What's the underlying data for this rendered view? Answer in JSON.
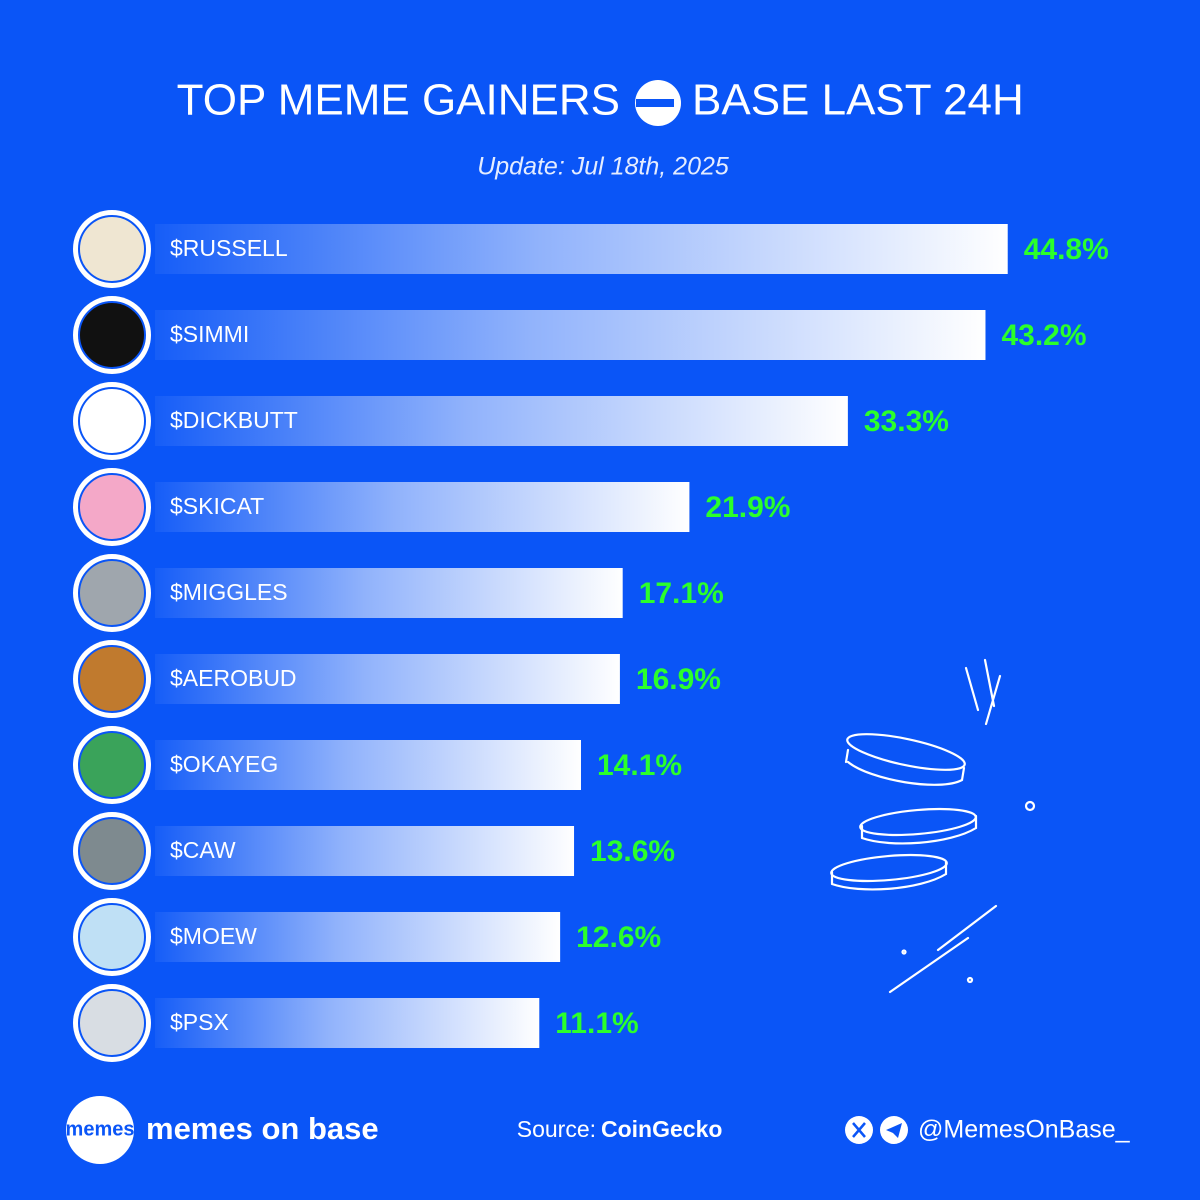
{
  "chart_data": {
    "type": "hbar",
    "title": "TOP MEME GAINERS",
    "title_network": "BASE LAST 24H",
    "subtitle": "Update: Jul 18th, 2025",
    "categories": [
      "$RUSSELL",
      "$SIMMI",
      "$DICKBUTT",
      "$SKICAT",
      "$MIGGLES",
      "$AEROBUD",
      "$OKAYEG",
      "$CAW",
      "$MOEW",
      "$PSX"
    ],
    "values": [
      44.8,
      43.2,
      33.3,
      21.9,
      17.1,
      16.9,
      14.1,
      13.6,
      12.6,
      11.1
    ],
    "value_labels": [
      "44.8%",
      "43.2%",
      "33.3%",
      "21.9%",
      "17.1%",
      "16.9%",
      "14.1%",
      "13.6%",
      "12.6%",
      "11.1%"
    ],
    "color": "#ffffff",
    "label_color": "#2bff2b"
  },
  "footer": {
    "logo": "memes",
    "brand": "memes on base",
    "source_label": "Source:",
    "source": "CoinGecko",
    "handle": "@MemesOnBase_"
  }
}
